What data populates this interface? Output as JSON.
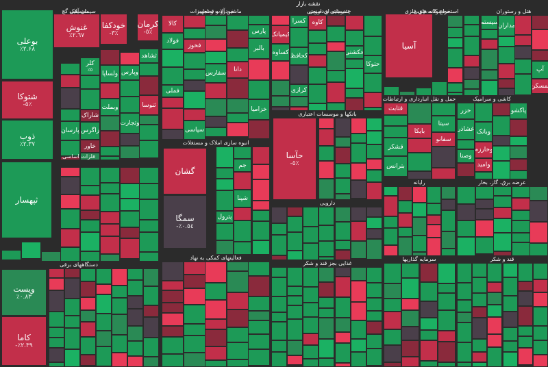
{
  "chart_data": {
    "type": "heatmap",
    "title": "نقشه بازار",
    "colors": {
      "strong_up": "#1bb163",
      "up": "#1d9a57",
      "weak_up": "#2a8a55",
      "neutral": "#4a3f4a",
      "weak_down": "#8a2a3c",
      "down": "#c22f4a",
      "strong_down": "#e83b58"
    },
    "sectors": [
      {
        "name": "شیمیایی"
      },
      {
        "name": "خودرو و قطعات"
      },
      {
        "name": "شیمیایی و دارویی"
      },
      {
        "name": "استخراج کانه های فلزی"
      },
      {
        "name": "هتل و رستوران"
      },
      {
        "name": "حمل و نقل انبارداری و ارتباطات"
      },
      {
        "name": "کاشی و سرامیک"
      },
      {
        "name": "انبوه سازی املاک و مستغلات"
      },
      {
        "name": "بانکها و موسسات اعتباری"
      },
      {
        "name": "فلزات اساسی"
      },
      {
        "name": "دارویی"
      },
      {
        "name": "رایانه"
      },
      {
        "name": "عرضه برق، گاز، بخار"
      },
      {
        "name": "فعالیتهای کمکی به نهاد"
      },
      {
        "name": "سرمایه گذاریها"
      },
      {
        "name": "قند و شکر"
      },
      {
        "name": "دستگاههای برقی"
      },
      {
        "name": "غذایی بجز قند و شکر"
      },
      {
        "name": "سیمان آهک گچ"
      },
      {
        "name": "ماشین آلات و تجهیزات"
      },
      {
        "name": "چندرشته ای صنعتی"
      },
      {
        "name": "محصولات چوبی"
      }
    ],
    "tiles": [
      {
        "name": "بوعلی",
        "pct": "٪۲.۶۸",
        "color": "up",
        "big": true
      },
      {
        "name": "شتوکا",
        "pct": "-٥٪",
        "color": "down",
        "big": true
      },
      {
        "name": "پارسان",
        "pct": "",
        "color": "up",
        "big": false
      },
      {
        "name": "کلر",
        "pct": "٪٥",
        "color": "up"
      },
      {
        "name": "شاراک",
        "pct": "",
        "color": "weak_down"
      },
      {
        "name": "زاگرس",
        "pct": "",
        "color": "up"
      },
      {
        "name": "ذوب",
        "pct": "٪۲.۳۷",
        "color": "up",
        "big": true
      },
      {
        "name": "غنوش",
        "pct": "٪۲.٦۷",
        "color": "down",
        "big": true
      },
      {
        "name": "خودکفا",
        "pct": "-۳٪",
        "color": "down",
        "big": true
      },
      {
        "name": "کرمان",
        "pct": "-٥٪",
        "color": "down",
        "big": true
      },
      {
        "name": "ثپهسار",
        "pct": "",
        "color": "up",
        "big": true
      },
      {
        "name": "ویست",
        "pct": "٪۰.٨٣",
        "color": "weak_up",
        "big": true
      },
      {
        "name": "کاما",
        "pct": "-٪۲.۳۹",
        "color": "down",
        "big": true
      },
      {
        "name": "سمگا",
        "pct": "-٪۰.٥٤",
        "color": "neutral",
        "big": true
      },
      {
        "name": "گشان",
        "pct": "",
        "color": "down",
        "big": true
      },
      {
        "name": "حآسا",
        "pct": "-٥٪",
        "color": "down",
        "big": true
      },
      {
        "name": "آسیا",
        "pct": "",
        "color": "down",
        "big": true
      },
      {
        "name": "خاور",
        "pct": "",
        "color": "weak_down"
      },
      {
        "name": "ولساپا",
        "pct": "",
        "color": "up"
      },
      {
        "name": "وبملت",
        "pct": "",
        "color": "up"
      },
      {
        "name": "وپارس",
        "pct": "",
        "color": "up"
      },
      {
        "name": "وتجارت",
        "pct": "",
        "color": "up"
      },
      {
        "name": "ثشاهد",
        "pct": "",
        "color": "up"
      },
      {
        "name": "ثنوسا",
        "pct": "",
        "color": "down"
      },
      {
        "name": "کالا",
        "pct": "",
        "color": "down"
      },
      {
        "name": "فولاد",
        "pct": "",
        "color": "up"
      },
      {
        "name": "فملی",
        "pct": "",
        "color": "up"
      },
      {
        "name": "فخوز",
        "pct": "",
        "color": "down"
      },
      {
        "name": "سپاسی",
        "pct": "",
        "color": "up"
      },
      {
        "name": "سفارس",
        "pct": "",
        "color": "up"
      },
      {
        "name": "دانا",
        "pct": "",
        "color": "down"
      },
      {
        "name": "پارس",
        "pct": "",
        "color": "up"
      },
      {
        "name": "بالبر",
        "pct": "",
        "color": "up"
      },
      {
        "name": "خزامیا",
        "pct": "",
        "color": "up"
      },
      {
        "name": "کیمیاتک",
        "pct": "",
        "color": "down"
      },
      {
        "name": "کساوه",
        "pct": "",
        "color": "up"
      },
      {
        "name": "کسرا",
        "pct": "",
        "color": "up"
      },
      {
        "name": "کحافظ",
        "pct": "",
        "color": "up"
      },
      {
        "name": "کرازی",
        "pct": "",
        "color": "up"
      },
      {
        "name": "کاوه",
        "pct": "",
        "color": "down"
      },
      {
        "name": "حکشتی",
        "pct": "",
        "color": "up"
      },
      {
        "name": "حتوکا",
        "pct": "",
        "color": "up"
      },
      {
        "name": "سیستم",
        "pct": "",
        "color": "up"
      },
      {
        "name": "مداران",
        "pct": "",
        "color": "up"
      },
      {
        "name": "آپ",
        "pct": "",
        "color": "up"
      },
      {
        "name": "ثمسکن",
        "pct": "",
        "color": "down"
      },
      {
        "name": "قثابت",
        "pct": "",
        "color": "down"
      },
      {
        "name": "قشکر",
        "pct": "",
        "color": "up"
      },
      {
        "name": "بترانس",
        "pct": "",
        "color": "up"
      },
      {
        "name": "بایکا",
        "pct": "",
        "color": "down"
      },
      {
        "name": "سیتا",
        "pct": "",
        "color": "up"
      },
      {
        "name": "سفانو",
        "pct": "",
        "color": "down"
      },
      {
        "name": "خزر",
        "pct": "",
        "color": "up"
      },
      {
        "name": "غشاذر",
        "pct": "",
        "color": "up"
      },
      {
        "name": "وصنا",
        "pct": "",
        "color": "up"
      },
      {
        "name": "وبانک",
        "pct": "",
        "color": "up"
      },
      {
        "name": "وخارزم",
        "pct": "",
        "color": "down"
      },
      {
        "name": "وامید",
        "pct": "",
        "color": "down"
      },
      {
        "name": "پاکشو",
        "pct": "",
        "color": "up"
      },
      {
        "name": "پترول",
        "pct": "",
        "color": "up"
      },
      {
        "name": "جم",
        "pct": "",
        "color": "up"
      },
      {
        "name": "شپنا",
        "pct": "",
        "color": "up"
      }
    ]
  }
}
